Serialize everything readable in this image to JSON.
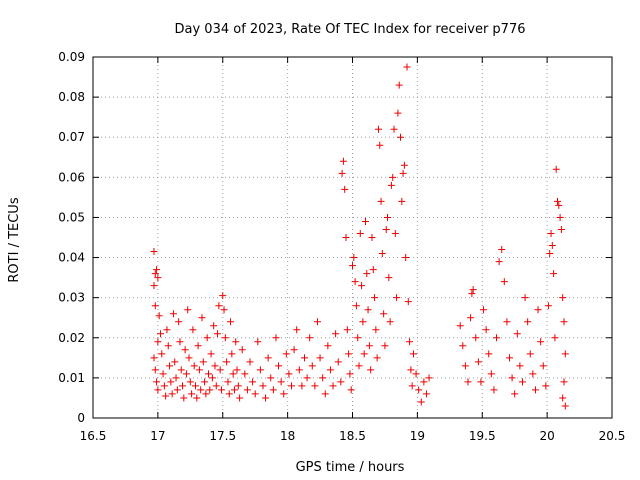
{
  "chart_data": {
    "type": "scatter",
    "title": "Day 034 of 2023, Rate Of TEC Index for receiver p776",
    "xlabel": "GPS time / hours",
    "ylabel": "ROTI / TECUs",
    "xlim": [
      16.5,
      20.5
    ],
    "ylim": [
      0,
      0.09
    ],
    "x_ticks": [
      16.5,
      17,
      17.5,
      18,
      18.5,
      19,
      19.5,
      20,
      20.5
    ],
    "x_tick_labels": [
      "16.5",
      "17",
      "17.5",
      "18",
      "18.5",
      "19",
      "19.5",
      "20",
      "20.5"
    ],
    "y_ticks": [
      0,
      0.01,
      0.02,
      0.03,
      0.04,
      0.05,
      0.06,
      0.07,
      0.08,
      0.09
    ],
    "y_tick_labels": [
      "0",
      "0.01",
      "0.02",
      "0.03",
      "0.04",
      "0.05",
      "0.06",
      "0.07",
      "0.08",
      "0.09"
    ],
    "grid": true,
    "marker": "+",
    "color": "#ee0000",
    "series": [
      {
        "name": "ROTI",
        "points": [
          [
            16.97,
            0.0415
          ],
          [
            16.98,
            0.036
          ],
          [
            16.99,
            0.037
          ],
          [
            17.0,
            0.035
          ],
          [
            16.97,
            0.033
          ],
          [
            16.98,
            0.028
          ],
          [
            17.0,
            0.019
          ],
          [
            16.97,
            0.015
          ],
          [
            16.98,
            0.012
          ],
          [
            16.99,
            0.009
          ],
          [
            17.0,
            0.007
          ],
          [
            17.01,
            0.0255
          ],
          [
            17.02,
            0.021
          ],
          [
            17.03,
            0.016
          ],
          [
            17.04,
            0.011
          ],
          [
            17.05,
            0.008
          ],
          [
            17.06,
            0.0055
          ],
          [
            17.07,
            0.022
          ],
          [
            17.08,
            0.018
          ],
          [
            17.09,
            0.013
          ],
          [
            17.1,
            0.009
          ],
          [
            17.11,
            0.006
          ],
          [
            17.12,
            0.026
          ],
          [
            17.13,
            0.014
          ],
          [
            17.14,
            0.01
          ],
          [
            17.15,
            0.007
          ],
          [
            17.16,
            0.024
          ],
          [
            17.17,
            0.019
          ],
          [
            17.18,
            0.012
          ],
          [
            17.19,
            0.008
          ],
          [
            17.2,
            0.005
          ],
          [
            17.21,
            0.017
          ],
          [
            17.22,
            0.011
          ],
          [
            17.23,
            0.027
          ],
          [
            17.24,
            0.015
          ],
          [
            17.25,
            0.009
          ],
          [
            17.26,
            0.006
          ],
          [
            17.27,
            0.022
          ],
          [
            17.28,
            0.013
          ],
          [
            17.29,
            0.008
          ],
          [
            17.3,
            0.005
          ],
          [
            17.31,
            0.018
          ],
          [
            17.32,
            0.012
          ],
          [
            17.33,
            0.007
          ],
          [
            17.34,
            0.025
          ],
          [
            17.35,
            0.014
          ],
          [
            17.36,
            0.009
          ],
          [
            17.37,
            0.006
          ],
          [
            17.38,
            0.02
          ],
          [
            17.39,
            0.011
          ],
          [
            17.4,
            0.007
          ],
          [
            17.41,
            0.016
          ],
          [
            17.42,
            0.01
          ],
          [
            17.43,
            0.023
          ],
          [
            17.44,
            0.013
          ],
          [
            17.45,
            0.008
          ],
          [
            17.46,
            0.021
          ],
          [
            17.47,
            0.028
          ],
          [
            17.48,
            0.012
          ],
          [
            17.49,
            0.007
          ],
          [
            17.5,
            0.0305
          ],
          [
            17.51,
            0.027
          ],
          [
            17.52,
            0.02
          ],
          [
            17.53,
            0.014
          ],
          [
            17.54,
            0.009
          ],
          [
            17.55,
            0.006
          ],
          [
            17.56,
            0.024
          ],
          [
            17.57,
            0.016
          ],
          [
            17.58,
            0.011
          ],
          [
            17.59,
            0.007
          ],
          [
            17.6,
            0.019
          ],
          [
            17.61,
            0.012
          ],
          [
            17.62,
            0.008
          ],
          [
            17.63,
            0.005
          ],
          [
            17.65,
            0.017
          ],
          [
            17.67,
            0.011
          ],
          [
            17.69,
            0.007
          ],
          [
            17.71,
            0.014
          ],
          [
            17.73,
            0.009
          ],
          [
            17.75,
            0.006
          ],
          [
            17.77,
            0.019
          ],
          [
            17.79,
            0.012
          ],
          [
            17.81,
            0.008
          ],
          [
            17.83,
            0.005
          ],
          [
            17.85,
            0.015
          ],
          [
            17.87,
            0.01
          ],
          [
            17.89,
            0.007
          ],
          [
            17.91,
            0.02
          ],
          [
            17.93,
            0.013
          ],
          [
            17.95,
            0.009
          ],
          [
            17.97,
            0.006
          ],
          [
            17.99,
            0.016
          ],
          [
            18.01,
            0.011
          ],
          [
            18.03,
            0.008
          ],
          [
            18.05,
            0.017
          ],
          [
            18.07,
            0.022
          ],
          [
            18.09,
            0.012
          ],
          [
            18.11,
            0.008
          ],
          [
            18.13,
            0.015
          ],
          [
            18.15,
            0.01
          ],
          [
            18.17,
            0.02
          ],
          [
            18.19,
            0.013
          ],
          [
            18.21,
            0.008
          ],
          [
            18.23,
            0.024
          ],
          [
            18.25,
            0.015
          ],
          [
            18.27,
            0.01
          ],
          [
            18.29,
            0.006
          ],
          [
            18.31,
            0.018
          ],
          [
            18.33,
            0.012
          ],
          [
            18.35,
            0.008
          ],
          [
            18.37,
            0.021
          ],
          [
            18.39,
            0.014
          ],
          [
            18.41,
            0.009
          ],
          [
            18.42,
            0.061
          ],
          [
            18.43,
            0.064
          ],
          [
            18.44,
            0.057
          ],
          [
            18.45,
            0.045
          ],
          [
            18.46,
            0.022
          ],
          [
            18.47,
            0.016
          ],
          [
            18.48,
            0.011
          ],
          [
            18.49,
            0.007
          ],
          [
            18.5,
            0.038
          ],
          [
            18.51,
            0.04
          ],
          [
            18.52,
            0.034
          ],
          [
            18.53,
            0.028
          ],
          [
            18.54,
            0.02
          ],
          [
            18.55,
            0.013
          ],
          [
            18.56,
            0.046
          ],
          [
            18.57,
            0.033
          ],
          [
            18.58,
            0.024
          ],
          [
            18.59,
            0.016
          ],
          [
            18.6,
            0.049
          ],
          [
            18.61,
            0.036
          ],
          [
            18.62,
            0.027
          ],
          [
            18.63,
            0.018
          ],
          [
            18.64,
            0.012
          ],
          [
            18.65,
            0.045
          ],
          [
            18.66,
            0.037
          ],
          [
            18.67,
            0.03
          ],
          [
            18.68,
            0.022
          ],
          [
            18.69,
            0.015
          ],
          [
            18.7,
            0.072
          ],
          [
            18.71,
            0.068
          ],
          [
            18.72,
            0.054
          ],
          [
            18.73,
            0.041
          ],
          [
            18.74,
            0.026
          ],
          [
            18.75,
            0.018
          ],
          [
            18.76,
            0.047
          ],
          [
            18.77,
            0.05
          ],
          [
            18.78,
            0.035
          ],
          [
            18.79,
            0.024
          ],
          [
            18.8,
            0.058
          ],
          [
            18.81,
            0.06
          ],
          [
            18.82,
            0.072
          ],
          [
            18.83,
            0.046
          ],
          [
            18.84,
            0.03
          ],
          [
            18.85,
            0.076
          ],
          [
            18.86,
            0.083
          ],
          [
            18.87,
            0.07
          ],
          [
            18.88,
            0.054
          ],
          [
            18.89,
            0.061
          ],
          [
            18.9,
            0.063
          ],
          [
            18.91,
            0.04
          ],
          [
            18.92,
            0.0875
          ],
          [
            18.93,
            0.029
          ],
          [
            18.94,
            0.019
          ],
          [
            18.95,
            0.012
          ],
          [
            18.96,
            0.008
          ],
          [
            18.97,
            0.016
          ],
          [
            18.99,
            0.011
          ],
          [
            19.01,
            0.007
          ],
          [
            19.03,
            0.004
          ],
          [
            19.05,
            0.009
          ],
          [
            19.07,
            0.006
          ],
          [
            19.09,
            0.01
          ],
          [
            19.33,
            0.023
          ],
          [
            19.35,
            0.018
          ],
          [
            19.37,
            0.013
          ],
          [
            19.39,
            0.009
          ],
          [
            19.41,
            0.025
          ],
          [
            19.42,
            0.031
          ],
          [
            19.43,
            0.032
          ],
          [
            19.45,
            0.02
          ],
          [
            19.47,
            0.014
          ],
          [
            19.49,
            0.009
          ],
          [
            19.51,
            0.027
          ],
          [
            19.53,
            0.022
          ],
          [
            19.55,
            0.016
          ],
          [
            19.57,
            0.011
          ],
          [
            19.59,
            0.007
          ],
          [
            19.61,
            0.02
          ],
          [
            19.63,
            0.039
          ],
          [
            19.65,
            0.042
          ],
          [
            19.67,
            0.034
          ],
          [
            19.69,
            0.024
          ],
          [
            19.71,
            0.015
          ],
          [
            19.73,
            0.01
          ],
          [
            19.75,
            0.006
          ],
          [
            19.77,
            0.021
          ],
          [
            19.79,
            0.013
          ],
          [
            19.81,
            0.009
          ],
          [
            19.83,
            0.03
          ],
          [
            19.85,
            0.024
          ],
          [
            19.87,
            0.016
          ],
          [
            19.89,
            0.011
          ],
          [
            19.91,
            0.007
          ],
          [
            19.93,
            0.027
          ],
          [
            19.95,
            0.019
          ],
          [
            19.97,
            0.013
          ],
          [
            19.99,
            0.008
          ],
          [
            20.01,
            0.028
          ],
          [
            20.02,
            0.041
          ],
          [
            20.03,
            0.046
          ],
          [
            20.04,
            0.043
          ],
          [
            20.05,
            0.036
          ],
          [
            20.06,
            0.02
          ],
          [
            20.07,
            0.062
          ],
          [
            20.08,
            0.054
          ],
          [
            20.09,
            0.053
          ],
          [
            20.1,
            0.05
          ],
          [
            20.11,
            0.047
          ],
          [
            20.12,
            0.03
          ],
          [
            20.13,
            0.024
          ],
          [
            20.14,
            0.016
          ],
          [
            20.13,
            0.009
          ],
          [
            20.12,
            0.005
          ],
          [
            20.14,
            0.003
          ]
        ]
      }
    ]
  }
}
